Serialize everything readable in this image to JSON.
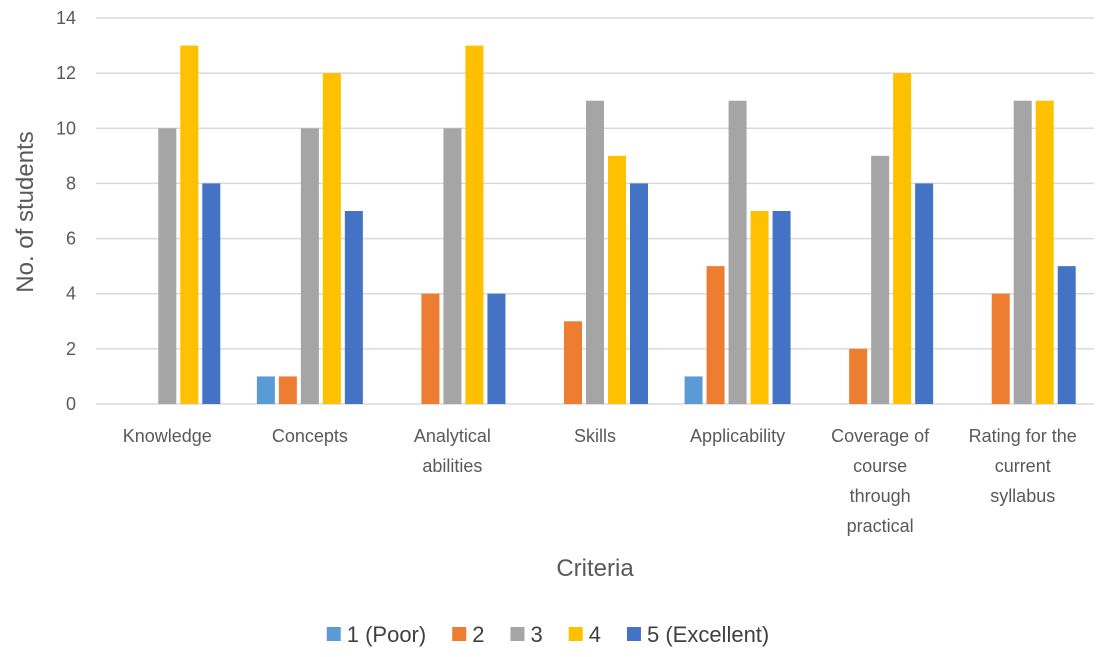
{
  "chart_data": {
    "type": "bar",
    "title": "",
    "xlabel": "Criteria",
    "ylabel": "No. of students",
    "ylim": [
      0,
      14
    ],
    "yticks": [
      0,
      2,
      4,
      6,
      8,
      10,
      12,
      14
    ],
    "grid": true,
    "legend_position": "bottom",
    "categories": [
      [
        "Knowledge"
      ],
      [
        "Concepts"
      ],
      [
        "Analytical",
        "abilities"
      ],
      [
        "Skills"
      ],
      [
        "Applicability"
      ],
      [
        "Coverage of",
        "course",
        "through",
        "practical"
      ],
      [
        "Rating for the",
        "current",
        "syllabus"
      ]
    ],
    "series": [
      {
        "name": "1 (Poor)",
        "color": "#5B9BD5",
        "values": [
          0,
          1,
          0,
          0,
          1,
          0,
          0
        ]
      },
      {
        "name": "2",
        "color": "#ED7D31",
        "values": [
          0,
          1,
          4,
          3,
          5,
          2,
          4
        ]
      },
      {
        "name": "3",
        "color": "#A5A5A5",
        "values": [
          10,
          10,
          10,
          11,
          11,
          9,
          11
        ]
      },
      {
        "name": "4",
        "color": "#FFC000",
        "values": [
          13,
          12,
          13,
          9,
          7,
          12,
          11
        ]
      },
      {
        "name": "5 (Excellent)",
        "color": "#4472C4",
        "values": [
          8,
          7,
          4,
          8,
          7,
          8,
          5
        ]
      }
    ]
  }
}
